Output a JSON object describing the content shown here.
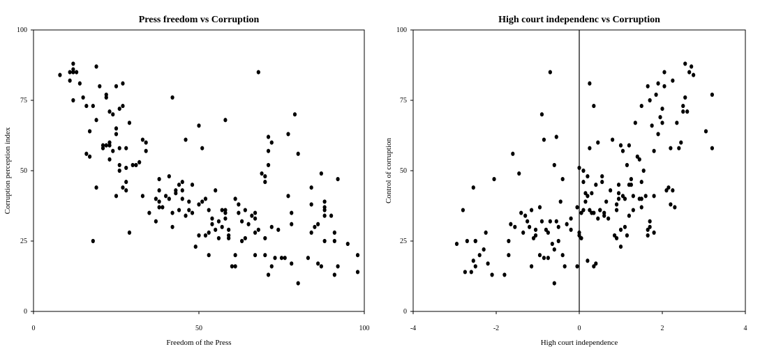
{
  "chart_data": [
    {
      "type": "scatter",
      "title": "Press freedom vs Corruption",
      "xlabel": "Freedom of the Press",
      "ylabel": "Corruption perception index",
      "xlim": [
        0,
        100
      ],
      "ylim": [
        0,
        100
      ],
      "xticks": [
        0,
        50,
        100
      ],
      "yticks": [
        0,
        25,
        50,
        75,
        100
      ],
      "grid": false,
      "points": [
        [
          8,
          84
        ],
        [
          11,
          82
        ],
        [
          11,
          85
        ],
        [
          12,
          88
        ],
        [
          12,
          86
        ],
        [
          12,
          85
        ],
        [
          12,
          75
        ],
        [
          13,
          85
        ],
        [
          14,
          81
        ],
        [
          15,
          76
        ],
        [
          16,
          56
        ],
        [
          16,
          73
        ],
        [
          17,
          55
        ],
        [
          17,
          64
        ],
        [
          18,
          73
        ],
        [
          18,
          25
        ],
        [
          19,
          87
        ],
        [
          19,
          44
        ],
        [
          19,
          68
        ],
        [
          20,
          80
        ],
        [
          21,
          59
        ],
        [
          21,
          58
        ],
        [
          22,
          77
        ],
        [
          22,
          76
        ],
        [
          22,
          59
        ],
        [
          23,
          71
        ],
        [
          23,
          60
        ],
        [
          23,
          59
        ],
        [
          23,
          54
        ],
        [
          24,
          70
        ],
        [
          24,
          57
        ],
        [
          25,
          63
        ],
        [
          25,
          80
        ],
        [
          25,
          41
        ],
        [
          25,
          65
        ],
        [
          26,
          72
        ],
        [
          26,
          58
        ],
        [
          26,
          52
        ],
        [
          26,
          50
        ],
        [
          27,
          73
        ],
        [
          27,
          81
        ],
        [
          27,
          44
        ],
        [
          28,
          58
        ],
        [
          28,
          43
        ],
        [
          28,
          46
        ],
        [
          28,
          51
        ],
        [
          29,
          67
        ],
        [
          29,
          28
        ],
        [
          30,
          52
        ],
        [
          31,
          52
        ],
        [
          32,
          53
        ],
        [
          33,
          41
        ],
        [
          33,
          61
        ],
        [
          34,
          60
        ],
        [
          34,
          57
        ],
        [
          35,
          35
        ],
        [
          37,
          40
        ],
        [
          37,
          32
        ],
        [
          38,
          47
        ],
        [
          38,
          43
        ],
        [
          38,
          37
        ],
        [
          38,
          39
        ],
        [
          39,
          37
        ],
        [
          40,
          41
        ],
        [
          41,
          48
        ],
        [
          41,
          40
        ],
        [
          42,
          35
        ],
        [
          42,
          76
        ],
        [
          42,
          30
        ],
        [
          43,
          43
        ],
        [
          43,
          42
        ],
        [
          44,
          36
        ],
        [
          44,
          45
        ],
        [
          45,
          40
        ],
        [
          45,
          46
        ],
        [
          45,
          43
        ],
        [
          46,
          34
        ],
        [
          46,
          61
        ],
        [
          47,
          36
        ],
        [
          47,
          39
        ],
        [
          48,
          35
        ],
        [
          48,
          45
        ],
        [
          49,
          23
        ],
        [
          50,
          27
        ],
        [
          50,
          38
        ],
        [
          50,
          66
        ],
        [
          51,
          58
        ],
        [
          51,
          39
        ],
        [
          52,
          40
        ],
        [
          52,
          27
        ],
        [
          53,
          28
        ],
        [
          53,
          20
        ],
        [
          53,
          36
        ],
        [
          54,
          33
        ],
        [
          54,
          31
        ],
        [
          55,
          29
        ],
        [
          55,
          43
        ],
        [
          56,
          32
        ],
        [
          56,
          26
        ],
        [
          57,
          30
        ],
        [
          57,
          36
        ],
        [
          58,
          33
        ],
        [
          58,
          35
        ],
        [
          58,
          36
        ],
        [
          58,
          68
        ],
        [
          59,
          27
        ],
        [
          59,
          26
        ],
        [
          59,
          29
        ],
        [
          60,
          16
        ],
        [
          61,
          16
        ],
        [
          61,
          20
        ],
        [
          61,
          40
        ],
        [
          62,
          35
        ],
        [
          62,
          38
        ],
        [
          63,
          32
        ],
        [
          63,
          25
        ],
        [
          64,
          26
        ],
        [
          64,
          36
        ],
        [
          65,
          31
        ],
        [
          66,
          34
        ],
        [
          67,
          33
        ],
        [
          67,
          28
        ],
        [
          67,
          35
        ],
        [
          67,
          20
        ],
        [
          68,
          29
        ],
        [
          68,
          85
        ],
        [
          69,
          49
        ],
        [
          70,
          46
        ],
        [
          70,
          48
        ],
        [
          70,
          26
        ],
        [
          70,
          20
        ],
        [
          71,
          13
        ],
        [
          71,
          62
        ],
        [
          71,
          57
        ],
        [
          71,
          52
        ],
        [
          72,
          60
        ],
        [
          72,
          16
        ],
        [
          72,
          30
        ],
        [
          73,
          19
        ],
        [
          74,
          29
        ],
        [
          75,
          19
        ],
        [
          76,
          19
        ],
        [
          77,
          63
        ],
        [
          77,
          41
        ],
        [
          78,
          17
        ],
        [
          78,
          31
        ],
        [
          78,
          35
        ],
        [
          79,
          70
        ],
        [
          80,
          10
        ],
        [
          80,
          56
        ],
        [
          83,
          19
        ],
        [
          84,
          44
        ],
        [
          84,
          38
        ],
        [
          84,
          28
        ],
        [
          85,
          30
        ],
        [
          86,
          31
        ],
        [
          86,
          17
        ],
        [
          87,
          16
        ],
        [
          87,
          49
        ],
        [
          88,
          36
        ],
        [
          88,
          37
        ],
        [
          88,
          34
        ],
        [
          88,
          39
        ],
        [
          88,
          25
        ],
        [
          90,
          34
        ],
        [
          91,
          13
        ],
        [
          91,
          25
        ],
        [
          91,
          28
        ],
        [
          92,
          16
        ],
        [
          92,
          47
        ],
        [
          95,
          24
        ],
        [
          98,
          20
        ],
        [
          98,
          14
        ]
      ]
    },
    {
      "type": "scatter",
      "title": "High court independenc vs Corruption",
      "xlabel": "High court independence",
      "ylabel": "Control of corruption",
      "xlim": [
        -4,
        4
      ],
      "ylim": [
        0,
        100
      ],
      "xticks": [
        -4,
        -2,
        0,
        2,
        4
      ],
      "yticks": [
        0,
        25,
        50,
        75,
        100
      ],
      "grid": false,
      "vline_x": 0,
      "points": [
        [
          -2.95,
          24
        ],
        [
          -2.8,
          36
        ],
        [
          -2.75,
          14
        ],
        [
          -2.7,
          25
        ],
        [
          -2.6,
          14
        ],
        [
          -2.55,
          44
        ],
        [
          -2.55,
          18
        ],
        [
          -2.5,
          25
        ],
        [
          -2.5,
          25
        ],
        [
          -2.5,
          16
        ],
        [
          -2.4,
          20
        ],
        [
          -2.3,
          22
        ],
        [
          -2.25,
          28
        ],
        [
          -2.2,
          17
        ],
        [
          -2.1,
          13
        ],
        [
          -2.05,
          47
        ],
        [
          -1.8,
          13
        ],
        [
          -1.7,
          20
        ],
        [
          -1.7,
          25
        ],
        [
          -1.65,
          31
        ],
        [
          -1.6,
          56
        ],
        [
          -1.55,
          30
        ],
        [
          -1.45,
          49
        ],
        [
          -1.4,
          35
        ],
        [
          -1.35,
          28
        ],
        [
          -1.3,
          34
        ],
        [
          -1.25,
          32
        ],
        [
          -1.2,
          30
        ],
        [
          -1.15,
          16
        ],
        [
          -1.15,
          36
        ],
        [
          -1.1,
          26
        ],
        [
          -1.05,
          29
        ],
        [
          -1.05,
          27
        ],
        [
          -0.95,
          20
        ],
        [
          -0.95,
          37
        ],
        [
          -0.9,
          70
        ],
        [
          -0.9,
          32
        ],
        [
          -0.85,
          19
        ],
        [
          -0.85,
          61
        ],
        [
          -0.8,
          29
        ],
        [
          -0.75,
          19
        ],
        [
          -0.75,
          28
        ],
        [
          -0.7,
          32
        ],
        [
          -0.7,
          85
        ],
        [
          -0.65,
          24
        ],
        [
          -0.6,
          52
        ],
        [
          -0.6,
          10
        ],
        [
          -0.6,
          22
        ],
        [
          -0.55,
          62
        ],
        [
          -0.55,
          32
        ],
        [
          -0.5,
          25
        ],
        [
          -0.5,
          30
        ],
        [
          -0.45,
          39
        ],
        [
          -0.4,
          47
        ],
        [
          -0.4,
          20
        ],
        [
          -0.35,
          16
        ],
        [
          -0.3,
          31
        ],
        [
          -0.2,
          29
        ],
        [
          -0.2,
          33
        ],
        [
          -0.05,
          16
        ],
        [
          -0.05,
          37
        ],
        [
          0,
          28
        ],
        [
          0,
          51
        ],
        [
          0,
          27
        ],
        [
          0.05,
          26
        ],
        [
          0.05,
          35
        ],
        [
          0.1,
          50
        ],
        [
          0.1,
          36
        ],
        [
          0.1,
          46
        ],
        [
          0.15,
          42
        ],
        [
          0.15,
          39
        ],
        [
          0.2,
          41
        ],
        [
          0.2,
          18
        ],
        [
          0.2,
          48
        ],
        [
          0.25,
          58
        ],
        [
          0.25,
          81
        ],
        [
          0.25,
          36
        ],
        [
          0.3,
          35
        ],
        [
          0.3,
          42
        ],
        [
          0.35,
          35
        ],
        [
          0.35,
          16
        ],
        [
          0.35,
          73
        ],
        [
          0.4,
          17
        ],
        [
          0.4,
          45
        ],
        [
          0.45,
          60
        ],
        [
          0.45,
          33
        ],
        [
          0.5,
          36
        ],
        [
          0.5,
          36
        ],
        [
          0.55,
          46
        ],
        [
          0.55,
          48
        ],
        [
          0.6,
          35
        ],
        [
          0.6,
          34
        ],
        [
          0.65,
          39
        ],
        [
          0.7,
          33
        ],
        [
          0.75,
          43
        ],
        [
          0.8,
          61
        ],
        [
          0.85,
          27
        ],
        [
          0.9,
          36
        ],
        [
          0.9,
          26
        ],
        [
          0.9,
          38
        ],
        [
          0.95,
          40
        ],
        [
          0.95,
          45
        ],
        [
          0.95,
          42
        ],
        [
          1,
          59
        ],
        [
          1,
          29
        ],
        [
          1,
          23
        ],
        [
          1.05,
          41
        ],
        [
          1.05,
          57
        ],
        [
          1.1,
          30
        ],
        [
          1.1,
          40
        ],
        [
          1.15,
          27
        ],
        [
          1.15,
          52
        ],
        [
          1.2,
          34
        ],
        [
          1.2,
          59
        ],
        [
          1.2,
          45
        ],
        [
          1.25,
          45
        ],
        [
          1.25,
          47
        ],
        [
          1.3,
          41
        ],
        [
          1.3,
          36
        ],
        [
          1.35,
          67
        ],
        [
          1.4,
          55
        ],
        [
          1.45,
          40
        ],
        [
          1.45,
          54
        ],
        [
          1.5,
          46
        ],
        [
          1.5,
          40
        ],
        [
          1.5,
          37
        ],
        [
          1.5,
          73
        ],
        [
          1.55,
          50
        ],
        [
          1.6,
          41
        ],
        [
          1.65,
          29
        ],
        [
          1.65,
          80
        ],
        [
          1.65,
          27
        ],
        [
          1.7,
          75
        ],
        [
          1.7,
          32
        ],
        [
          1.7,
          30
        ],
        [
          1.75,
          66
        ],
        [
          1.8,
          57
        ],
        [
          1.8,
          28
        ],
        [
          1.8,
          41
        ],
        [
          1.85,
          77
        ],
        [
          1.9,
          81
        ],
        [
          1.9,
          63
        ],
        [
          1.95,
          69
        ],
        [
          2,
          67
        ],
        [
          2,
          72
        ],
        [
          2.05,
          85
        ],
        [
          2.05,
          80
        ],
        [
          2.1,
          43
        ],
        [
          2.15,
          44
        ],
        [
          2.2,
          38
        ],
        [
          2.2,
          58
        ],
        [
          2.25,
          82
        ],
        [
          2.25,
          43
        ],
        [
          2.3,
          37
        ],
        [
          2.35,
          67
        ],
        [
          2.4,
          58
        ],
        [
          2.45,
          60
        ],
        [
          2.5,
          71
        ],
        [
          2.5,
          73
        ],
        [
          2.55,
          76
        ],
        [
          2.55,
          88
        ],
        [
          2.6,
          71
        ],
        [
          2.65,
          85
        ],
        [
          2.7,
          87
        ],
        [
          2.75,
          84
        ],
        [
          3.05,
          64
        ],
        [
          3.2,
          77
        ],
        [
          3.2,
          58
        ]
      ]
    }
  ]
}
